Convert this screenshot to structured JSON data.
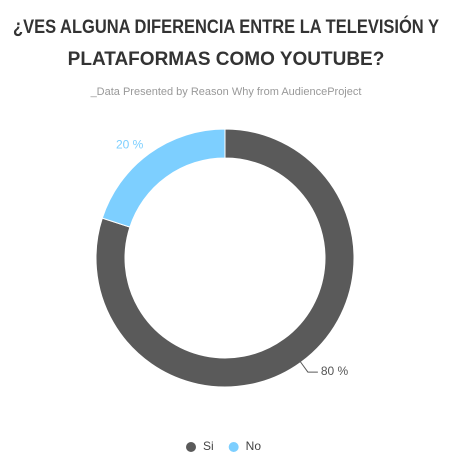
{
  "chart_data": {
    "type": "donut",
    "title": [
      "¿VES ALGUNA DIFERENCIA ENTRE LA TELEVISIÓN Y",
      "PLATAFORMAS COMO YOUTUBE?"
    ],
    "subtitle": "_Data Presented by Reason Why from AudienceProject",
    "categories": [
      "Si",
      "No"
    ],
    "values": [
      80,
      20
    ],
    "value_labels": [
      "80 %",
      "20 %"
    ],
    "colors": [
      "#5a5a5a",
      "#7dcfff"
    ],
    "legend": "bottom"
  }
}
